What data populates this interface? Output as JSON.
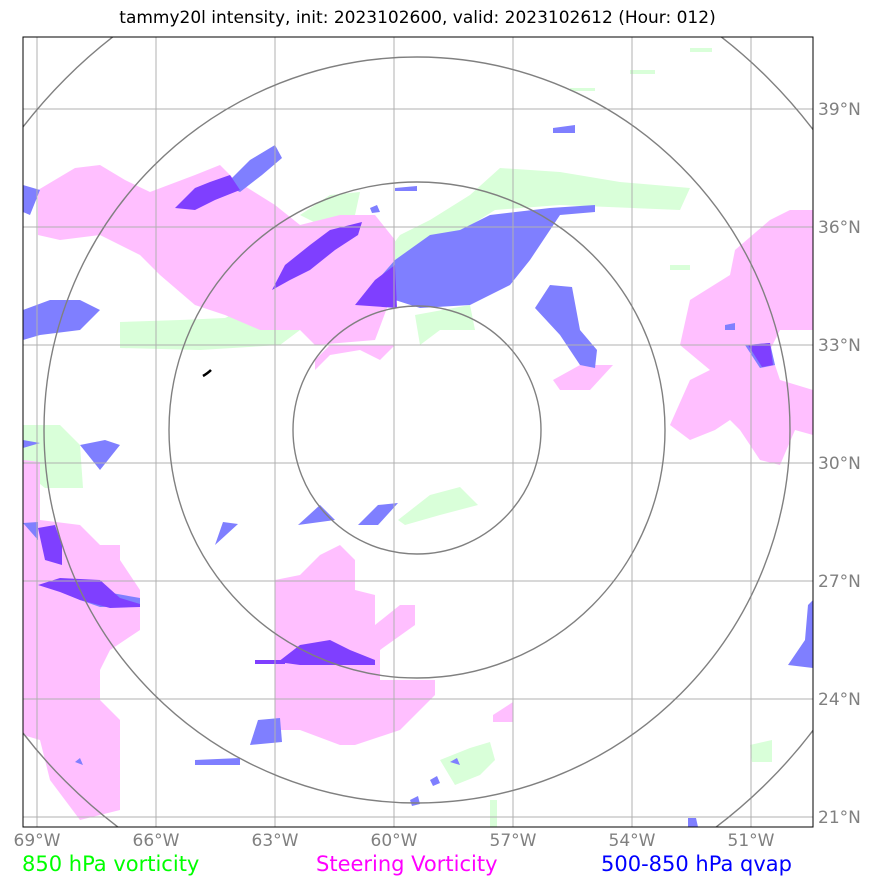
{
  "title": "tammy20l intensity, init: 2023102600, valid: 2023102612 (Hour: 012)",
  "lon_labels": [
    "69°W",
    "66°W",
    "63°W",
    "60°W",
    "57°W",
    "54°W",
    "51°W"
  ],
  "lat_labels": [
    "39°N",
    "36°N",
    "33°N",
    "30°N",
    "27°N",
    "24°N",
    "21°N"
  ],
  "legend": [
    {
      "label": "850 hPa vorticity",
      "color": "#00ff00"
    },
    {
      "label": "Steering Vorticity",
      "color": "#ff00ff"
    },
    {
      "label": "500-850 hPa qvap",
      "color": "#0000ff"
    }
  ],
  "colors": {
    "vorticity_850": "#d9ffd9",
    "steering_vorticity": "#ffbfff",
    "qvap": "#7f7fff",
    "qvap_overlap": "#7f3fff",
    "range_rings": "#808080",
    "grid": "#b0b0b0"
  }
}
